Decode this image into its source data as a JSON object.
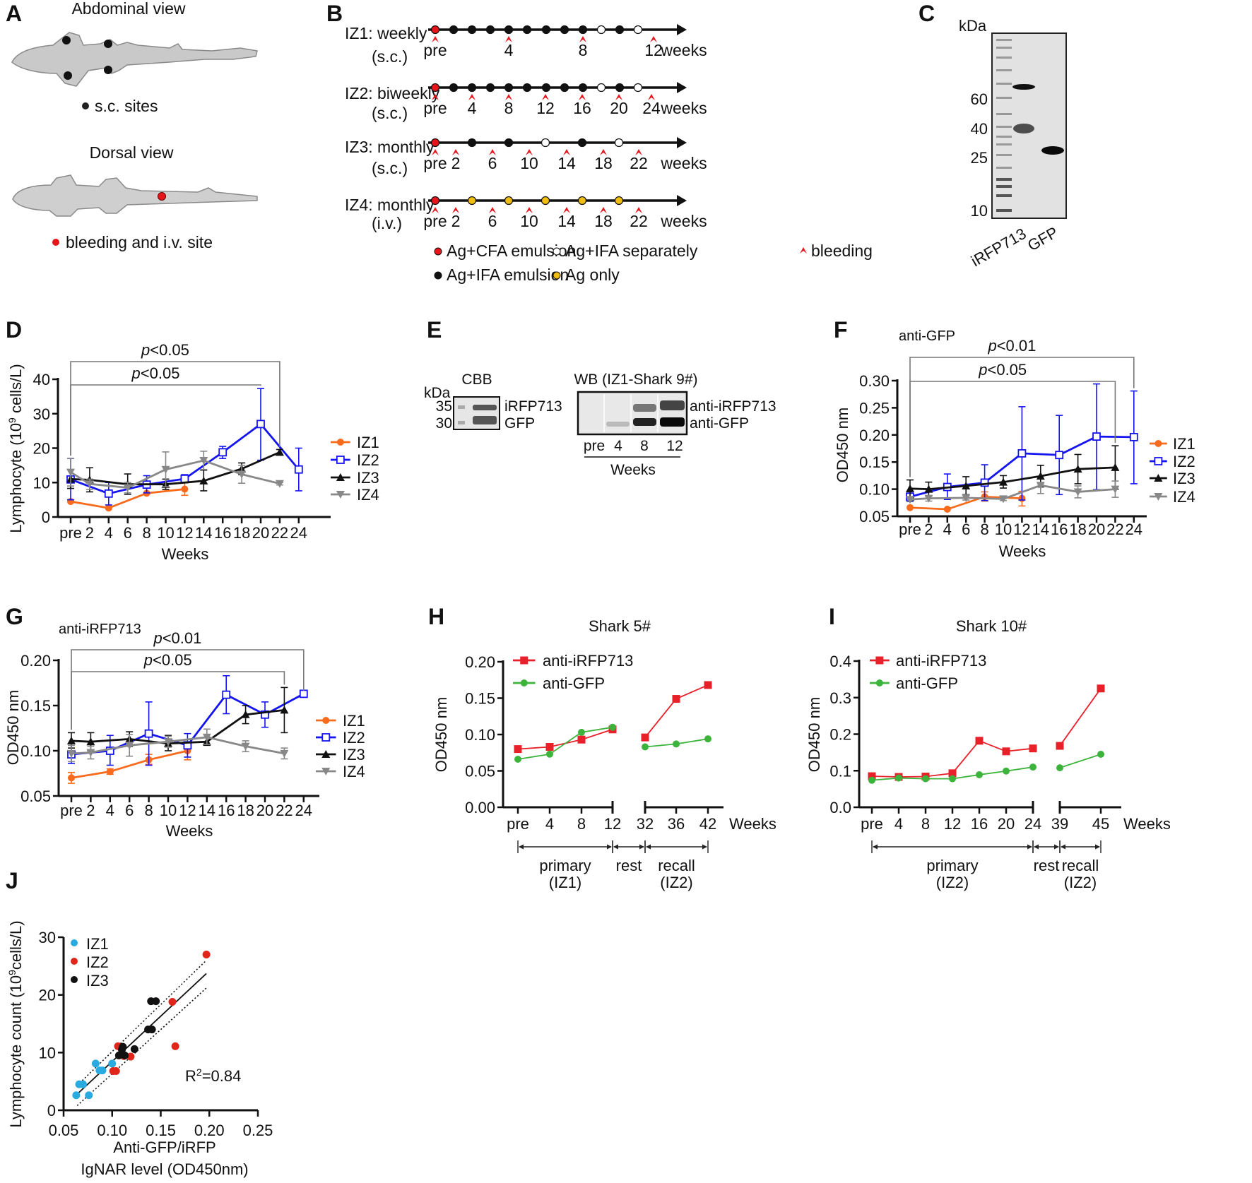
{
  "panel_letters": {
    "A": "A",
    "B": "B",
    "C": "C",
    "D": "D",
    "E": "E",
    "F": "F",
    "G": "G",
    "H": "H",
    "I": "I",
    "J": "J"
  },
  "panel_a": {
    "abdominal_title": "Abdominal view",
    "sc_legend": "s.c. sites",
    "dorsal_title": "Dorsal view",
    "iv_legend": "bleeding and i.v. site"
  },
  "panel_b": {
    "weeks_label": "weeks",
    "colors": {
      "cfa": "#e8141b",
      "ifa": "#111111",
      "ifa_sep": "#ffffff",
      "ag_only": "#f2bd12",
      "bleeding": "#e8141b"
    },
    "rows": [
      {
        "label": "IZ1: weekly",
        "route": "(s.c.)",
        "injections": [
          "cfa",
          "ifa",
          "ifa",
          "ifa",
          "ifa",
          "ifa",
          "ifa",
          "ifa",
          "ifa",
          "ifa_sep",
          "ifa",
          "ifa_sep"
        ],
        "bleeds": [
          "pre",
          "4",
          "8",
          "12"
        ]
      },
      {
        "label": "IZ2: biweekly",
        "route": "(s.c.)",
        "injections": [
          "cfa",
          "ifa",
          "ifa",
          "ifa",
          "ifa",
          "ifa",
          "ifa",
          "ifa",
          "ifa",
          "ifa_sep",
          "ifa",
          "ifa_sep"
        ],
        "bleeds": [
          "pre",
          "4",
          "8",
          "12",
          "16",
          "20",
          "24"
        ]
      },
      {
        "label": "IZ3: monthly",
        "route": "(s.c.)",
        "injections": [
          "cfa",
          "ifa",
          "ifa",
          "ifa_sep",
          "ifa",
          "ifa_sep"
        ],
        "bleeds": [
          "pre",
          "2",
          "6",
          "10",
          "14",
          "18",
          "22"
        ]
      },
      {
        "label": "IZ4: monthly",
        "route": "(i.v.)",
        "injections": [
          "cfa",
          "ag_only",
          "ag_only",
          "ag_only",
          "ag_only",
          "ag_only"
        ],
        "bleeds": [
          "pre",
          "2",
          "6",
          "10",
          "14",
          "18",
          "22"
        ]
      }
    ],
    "legend": {
      "cfa": "Ag+CFA emulsion",
      "ifa_sep": "Ag+IFA separately",
      "bleeding": "bleeding",
      "ifa": "Ag+IFA emulsion",
      "ag_only": "Ag only"
    }
  },
  "panel_c": {
    "unit": "kDa",
    "markers": [
      "60",
      "40",
      "25",
      "10"
    ],
    "lanes": [
      "iRFP713",
      "GFP"
    ]
  },
  "panel_e": {
    "cbb_title": "CBB",
    "unit": "kDa",
    "markers": [
      "35",
      "30"
    ],
    "band_labels": [
      "iRFP713",
      "GFP"
    ],
    "wb_title": "WB (IZ1-Shark 9#)",
    "wb_band_labels": [
      "anti-iRFP713",
      "anti-GFP"
    ],
    "lanes": [
      "pre",
      "4",
      "8",
      "12"
    ],
    "xlabel": "Weeks"
  },
  "chart_data": [
    {
      "panel": "D",
      "type": "line",
      "title": "",
      "ylabel": {
        "pre": "Lymphocyte (10",
        "sup": "9",
        "post": " cells/L)"
      },
      "xlabel": "Weeks",
      "categories": [
        "pre",
        "2",
        "4",
        "6",
        "8",
        "10",
        "12",
        "14",
        "16",
        "18",
        "20",
        "22",
        "24"
      ],
      "ylim": [
        0,
        40
      ],
      "yticks": [
        "0",
        "10",
        "20",
        "30",
        "40"
      ],
      "brackets": [
        {
          "p": "p",
          "cmp": "<0.05",
          "from": "pre",
          "to": "22"
        },
        {
          "p": "p",
          "cmp": "<0.05",
          "from": "pre",
          "to": "20"
        }
      ],
      "series": [
        {
          "name": "IZ1",
          "color": "#f96b1c",
          "marker": "circle",
          "x": [
            "pre",
            "4",
            "8",
            "12"
          ],
          "y": [
            4.5,
            2.6,
            6.9,
            8.1
          ],
          "err_low": [
            4.5,
            2.6,
            6.9,
            6.3
          ],
          "err_high": [
            4.5,
            2.6,
            6.9,
            9.9
          ]
        },
        {
          "name": "IZ2",
          "color": "#1414f0",
          "marker": "square-open",
          "x": [
            "pre",
            "4",
            "8",
            "12",
            "16",
            "20",
            "24"
          ],
          "y": [
            10.9,
            6.8,
            9.4,
            11.1,
            18.8,
            27.0,
            13.8
          ],
          "err_low": [
            5.0,
            3.5,
            7.0,
            10.0,
            17.0,
            16.5,
            7.6
          ],
          "err_high": [
            17.0,
            10.0,
            12.0,
            12.3,
            20.5,
            37.3,
            20.0
          ]
        },
        {
          "name": "IZ3",
          "color": "#111111",
          "marker": "triangle-up",
          "x": [
            "pre",
            "2",
            "6",
            "10",
            "14",
            "18",
            "22"
          ],
          "y": [
            11.0,
            10.8,
            9.5,
            9.5,
            10.5,
            14.0,
            18.8
          ],
          "err_low": [
            8.3,
            7.3,
            6.6,
            8.0,
            7.6,
            12.3,
            18.0
          ],
          "err_high": [
            13.7,
            14.3,
            12.5,
            11.0,
            13.6,
            15.7,
            19.6
          ]
        },
        {
          "name": "IZ4",
          "color": "#888888",
          "marker": "triangle-down",
          "x": [
            "pre",
            "2",
            "6",
            "10",
            "14",
            "18",
            "22"
          ],
          "y": [
            13.0,
            9.6,
            8.5,
            13.8,
            16.4,
            12.4,
            9.7
          ],
          "err_low": [
            9.0,
            8.0,
            7.0,
            8.8,
            13.8,
            9.8,
            9.3
          ],
          "err_high": [
            17.0,
            11.0,
            10.0,
            18.9,
            19.1,
            15.0,
            10.0
          ]
        }
      ]
    },
    {
      "panel": "F",
      "type": "line",
      "title": "anti-GFP",
      "ylabel": {
        "pre": "OD450 nm",
        "sup": "",
        "post": ""
      },
      "xlabel": "Weeks",
      "categories": [
        "pre",
        "2",
        "4",
        "6",
        "8",
        "10",
        "12",
        "14",
        "16",
        "18",
        "20",
        "22",
        "24"
      ],
      "ylim": [
        0.05,
        0.3
      ],
      "yticks": [
        "0.05",
        "0.10",
        "0.15",
        "0.20",
        "0.25",
        "0.30"
      ],
      "brackets": [
        {
          "p": "p",
          "cmp": "<0.01",
          "from": "pre",
          "to": "24"
        },
        {
          "p": "p",
          "cmp": "<0.05",
          "from": "pre",
          "to": "22"
        }
      ],
      "series": [
        {
          "name": "IZ1",
          "color": "#f96b1c",
          "marker": "circle",
          "x": [
            "pre",
            "4",
            "8",
            "12"
          ],
          "y": [
            0.066,
            0.063,
            0.086,
            0.083
          ],
          "err_low": [
            0.066,
            0.063,
            0.078,
            0.069
          ],
          "err_high": [
            0.066,
            0.063,
            0.095,
            0.096
          ]
        },
        {
          "name": "IZ2",
          "color": "#1414f0",
          "marker": "square-open",
          "x": [
            "pre",
            "4",
            "8",
            "12",
            "16",
            "20",
            "24"
          ],
          "y": [
            0.086,
            0.104,
            0.112,
            0.166,
            0.163,
            0.197,
            0.196
          ],
          "err_low": [
            0.077,
            0.081,
            0.079,
            0.08,
            0.09,
            0.099,
            0.11
          ],
          "err_high": [
            0.095,
            0.128,
            0.145,
            0.252,
            0.236,
            0.294,
            0.281
          ]
        },
        {
          "name": "IZ3",
          "color": "#111111",
          "marker": "triangle-up",
          "x": [
            "pre",
            "2",
            "6",
            "10",
            "14",
            "18",
            "22"
          ],
          "y": [
            0.101,
            0.1,
            0.106,
            0.113,
            0.124,
            0.137,
            0.14
          ],
          "err_low": [
            0.086,
            0.087,
            0.09,
            0.102,
            0.104,
            0.11,
            0.1
          ],
          "err_high": [
            0.117,
            0.113,
            0.123,
            0.125,
            0.144,
            0.164,
            0.18
          ]
        },
        {
          "name": "IZ4",
          "color": "#888888",
          "marker": "triangle-down",
          "x": [
            "pre",
            "2",
            "6",
            "10",
            "14",
            "18",
            "22"
          ],
          "y": [
            0.081,
            0.083,
            0.084,
            0.082,
            0.107,
            0.095,
            0.1
          ],
          "err_low": [
            0.078,
            0.078,
            0.08,
            0.079,
            0.092,
            0.084,
            0.085
          ],
          "err_high": [
            0.084,
            0.088,
            0.088,
            0.085,
            0.11,
            0.106,
            0.115
          ]
        }
      ]
    },
    {
      "panel": "G",
      "type": "line",
      "title": "anti-iRFP713",
      "ylabel": {
        "pre": "OD450 nm",
        "sup": "",
        "post": ""
      },
      "xlabel": "Weeks",
      "categories": [
        "pre",
        "2",
        "4",
        "6",
        "8",
        "10",
        "12",
        "14",
        "16",
        "18",
        "20",
        "22",
        "24"
      ],
      "ylim": [
        0.05,
        0.2
      ],
      "yticks": [
        "0.05",
        "0.10",
        "0.15",
        "0.20"
      ],
      "brackets": [
        {
          "p": "p",
          "cmp": "<0.01",
          "from": "pre",
          "to": "24"
        },
        {
          "p": "p",
          "cmp": "<0.05",
          "from": "pre",
          "to": "22"
        }
      ],
      "series": [
        {
          "name": "IZ1",
          "color": "#f96b1c",
          "marker": "circle",
          "x": [
            "pre",
            "4",
            "8",
            "12"
          ],
          "y": [
            0.07,
            0.077,
            0.09,
            0.1
          ],
          "err_low": [
            0.064,
            0.074,
            0.085,
            0.09
          ],
          "err_high": [
            0.076,
            0.08,
            0.096,
            0.1
          ]
        },
        {
          "name": "IZ2",
          "color": "#1414f0",
          "marker": "square-open",
          "x": [
            "pre",
            "4",
            "8",
            "12",
            "16",
            "20",
            "24"
          ],
          "y": [
            0.096,
            0.1,
            0.119,
            0.106,
            0.162,
            0.14,
            0.163
          ],
          "err_low": [
            0.086,
            0.084,
            0.084,
            0.093,
            0.141,
            0.126,
            0.163
          ],
          "err_high": [
            0.106,
            0.117,
            0.154,
            0.119,
            0.183,
            0.154,
            0.163
          ]
        },
        {
          "name": "IZ3",
          "color": "#111111",
          "marker": "triangle-up",
          "x": [
            "pre",
            "2",
            "6",
            "10",
            "14",
            "18",
            "22"
          ],
          "y": [
            0.111,
            0.11,
            0.113,
            0.108,
            0.11,
            0.14,
            0.145
          ],
          "err_low": [
            0.103,
            0.1,
            0.105,
            0.1,
            0.106,
            0.13,
            0.12
          ],
          "err_high": [
            0.12,
            0.12,
            0.121,
            0.117,
            0.115,
            0.15,
            0.17
          ]
        },
        {
          "name": "IZ4",
          "color": "#888888",
          "marker": "triangle-down",
          "x": [
            "pre",
            "2",
            "6",
            "10",
            "14",
            "18",
            "22"
          ],
          "y": [
            0.097,
            0.098,
            0.106,
            0.11,
            0.115,
            0.105,
            0.097
          ],
          "err_low": [
            0.088,
            0.091,
            0.094,
            0.104,
            0.107,
            0.099,
            0.091
          ],
          "err_high": [
            0.106,
            0.105,
            0.118,
            0.116,
            0.124,
            0.111,
            0.103
          ]
        }
      ]
    },
    {
      "panel": "H",
      "type": "line",
      "title": "Shark 5#",
      "ylabel": {
        "pre": "OD450 nm",
        "sup": "",
        "post": ""
      },
      "xlabel": "Weeks",
      "categories": [
        "pre",
        "4",
        "8",
        "12",
        "32",
        "36",
        "42"
      ],
      "ylim": [
        0,
        0.2
      ],
      "yticks": [
        "0.00",
        "0.05",
        "0.10",
        "0.15",
        "0.20"
      ],
      "phases": [
        {
          "label": "primary",
          "sub": "(IZ1)",
          "from": "pre",
          "to": "12"
        },
        {
          "label": "rest",
          "sub": "",
          "from": "12",
          "to": "32"
        },
        {
          "label": "recall",
          "sub": "(IZ2)",
          "from": "32",
          "to": "42"
        }
      ],
      "series": [
        {
          "name": "anti-iRFP713",
          "color": "#e8202a",
          "marker": "square",
          "x": [
            "pre",
            "4",
            "8",
            "12",
            "32",
            "36",
            "42"
          ],
          "y": [
            0.08,
            0.083,
            0.093,
            0.107,
            0.096,
            0.149,
            0.168
          ],
          "break_after": "12"
        },
        {
          "name": "anti-GFP",
          "color": "#3cb43c",
          "marker": "circle",
          "x": [
            "pre",
            "4",
            "8",
            "12",
            "32",
            "36",
            "42"
          ],
          "y": [
            0.066,
            0.073,
            0.103,
            0.11,
            0.083,
            0.087,
            0.094
          ],
          "break_after": "12"
        }
      ]
    },
    {
      "panel": "I",
      "type": "line",
      "title": "Shark 10#",
      "ylabel": {
        "pre": "OD450 nm",
        "sup": "",
        "post": ""
      },
      "xlabel": "Weeks",
      "categories": [
        "pre",
        "4",
        "8",
        "12",
        "16",
        "20",
        "24",
        "39",
        "45"
      ],
      "ylim": [
        0,
        0.4
      ],
      "yticks": [
        "0.0",
        "0.1",
        "0.2",
        "0.3",
        "0.4"
      ],
      "phases": [
        {
          "label": "primary",
          "sub": "(IZ2)",
          "from": "pre",
          "to": "24"
        },
        {
          "label": "rest",
          "sub": "",
          "from": "24",
          "to": "39"
        },
        {
          "label": "recall",
          "sub": "(IZ2)",
          "from": "39",
          "to": "45"
        }
      ],
      "series": [
        {
          "name": "anti-iRFP713",
          "color": "#e8202a",
          "marker": "square",
          "x": [
            "pre",
            "4",
            "8",
            "12",
            "16",
            "20",
            "24",
            "39",
            "45"
          ],
          "y": [
            0.085,
            0.083,
            0.084,
            0.093,
            0.182,
            0.153,
            0.161,
            0.168,
            0.325
          ],
          "break_after": "24"
        },
        {
          "name": "anti-GFP",
          "color": "#3cb43c",
          "marker": "circle",
          "x": [
            "pre",
            "4",
            "8",
            "12",
            "16",
            "20",
            "24",
            "39",
            "45"
          ],
          "y": [
            0.074,
            0.08,
            0.078,
            0.078,
            0.089,
            0.099,
            0.11,
            0.108,
            0.145
          ],
          "break_after": "24"
        }
      ]
    },
    {
      "panel": "J",
      "type": "scatter",
      "title": "",
      "ylabel": {
        "pre": "Lymphocyte count (10",
        "sup": "9",
        "post": "cells/L)"
      },
      "xlabel_lines": [
        "Anti-GFP/iRFP",
        "IgNAR level (OD450nm)"
      ],
      "xlim": [
        0.05,
        0.25
      ],
      "xticks": [
        "0.05",
        "0.10",
        "0.15",
        "0.20",
        "0.25"
      ],
      "ylim": [
        0,
        30
      ],
      "yticks": [
        "0",
        "10",
        "20",
        "30"
      ],
      "annotation": {
        "pre": "R",
        "sup": "2",
        "post": "=0.84"
      },
      "fit": {
        "x": [
          0.064,
          0.197
        ],
        "y": [
          2.8,
          23.7
        ],
        "ci_upper": [
          4.3,
          26.0
        ],
        "ci_lower": [
          0.8,
          21.2
        ]
      },
      "series": [
        {
          "name": "IZ1",
          "color": "#29abe2",
          "x": [
            0.063,
            0.076,
            0.066,
            0.07,
            0.083,
            0.1,
            0.087,
            0.09
          ],
          "y": [
            2.6,
            2.6,
            4.5,
            4.5,
            8.1,
            8.1,
            6.9,
            6.9
          ]
        },
        {
          "name": "IZ2",
          "color": "#e0251b",
          "x": [
            0.197,
            0.162,
            0.165,
            0.106,
            0.101,
            0.104,
            0.112,
            0.119
          ],
          "y": [
            27.0,
            18.8,
            11.1,
            11.1,
            6.8,
            6.8,
            9.4,
            9.3
          ]
        },
        {
          "name": "IZ3",
          "color": "#111111",
          "x": [
            0.14,
            0.145,
            0.137,
            0.141,
            0.11,
            0.111,
            0.107,
            0.113,
            0.123
          ],
          "y": [
            18.9,
            18.9,
            14.0,
            14.0,
            10.5,
            11.0,
            9.5,
            9.5,
            10.6
          ]
        }
      ]
    }
  ]
}
